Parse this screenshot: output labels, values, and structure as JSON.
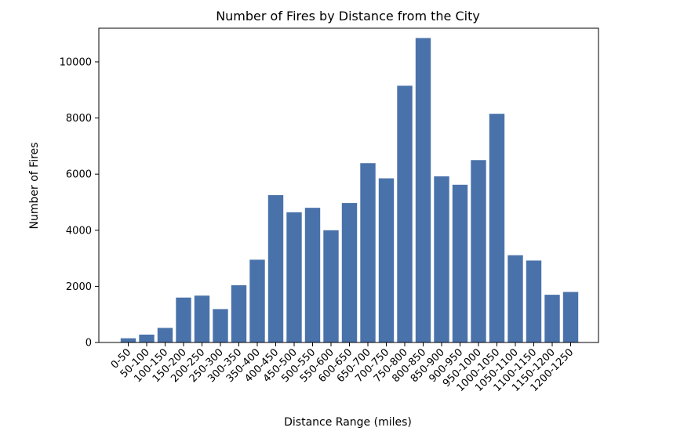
{
  "chart_data": {
    "type": "bar",
    "title": "Number of Fires by Distance from the City",
    "xlabel": "Distance Range (miles)",
    "ylabel": "Number of Fires",
    "categories": [
      "0-50",
      "50-100",
      "100-150",
      "150-200",
      "200-250",
      "250-300",
      "300-350",
      "350-400",
      "400-450",
      "450-500",
      "500-550",
      "550-600",
      "600-650",
      "650-700",
      "700-750",
      "750-800",
      "800-850",
      "850-900",
      "900-950",
      "950-1000",
      "1000-1050",
      "1050-1100",
      "1100-1150",
      "1150-1200",
      "1200-1250"
    ],
    "values": [
      150,
      280,
      520,
      1600,
      1670,
      1190,
      2040,
      2950,
      5250,
      4640,
      4800,
      4000,
      4970,
      6390,
      5850,
      9150,
      10850,
      5920,
      5620,
      6500,
      8150,
      3110,
      2920,
      1700,
      1800
    ],
    "ylim": [
      0,
      11200
    ],
    "yticks": [
      0,
      2000,
      4000,
      6000,
      8000,
      10000
    ],
    "bar_color": "#4a72aa",
    "grid": false,
    "legend": "none"
  }
}
